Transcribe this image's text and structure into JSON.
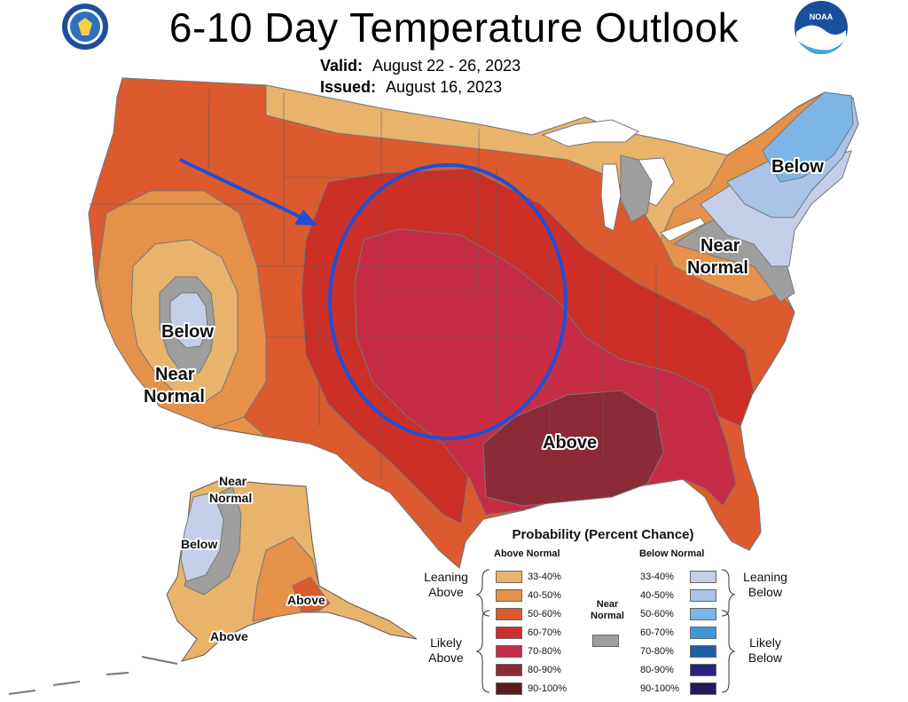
{
  "title": "6-10 Day Temperature Outlook",
  "valid": {
    "label": "Valid:",
    "value": "August 22 - 26, 2023"
  },
  "issued": {
    "label": "Issued:",
    "value": "August 16, 2023"
  },
  "logos": {
    "doc_seal": "Department of Commerce seal",
    "noaa": "NOAA"
  },
  "map_labels": {
    "northeast_below": "Below",
    "greatlakes_near_1": "Near",
    "greatlakes_near_2": "Normal",
    "west_below": "Below",
    "west_near_1": "Near",
    "west_near_2": "Normal",
    "gulf_above": "Above",
    "ak_near_1": "Near",
    "ak_near_2": "Normal",
    "ak_below": "Below",
    "ak_above_1": "Above",
    "ak_above_2": "Above"
  },
  "legend": {
    "title": "Probability (Percent Chance)",
    "above_header": "Above Normal",
    "below_header": "Below Normal",
    "near_header_1": "Near",
    "near_header_2": "Normal",
    "leaning_above_1": "Leaning",
    "leaning_above_2": "Above",
    "likely_above_1": "Likely",
    "likely_above_2": "Above",
    "leaning_below_1": "Leaning",
    "leaning_below_2": "Below",
    "likely_below_1": "Likely",
    "likely_below_2": "Below",
    "above": [
      {
        "label": "33-40%",
        "color": "#E8B36A"
      },
      {
        "label": "40-50%",
        "color": "#E5914A"
      },
      {
        "label": "50-60%",
        "color": "#DC5A2E"
      },
      {
        "label": "60-70%",
        "color": "#CC2F28"
      },
      {
        "label": "70-80%",
        "color": "#C62D45"
      },
      {
        "label": "80-90%",
        "color": "#8C2A38"
      },
      {
        "label": "90-100%",
        "color": "#5A1A1E"
      }
    ],
    "below": [
      {
        "label": "33-40%",
        "color": "#C5CEE8"
      },
      {
        "label": "40-50%",
        "color": "#A9C4E6"
      },
      {
        "label": "50-60%",
        "color": "#7DB5E6"
      },
      {
        "label": "60-70%",
        "color": "#3F97D6"
      },
      {
        "label": "70-80%",
        "color": "#1F5FA6"
      },
      {
        "label": "80-90%",
        "color": "#2B2280"
      },
      {
        "label": "90-100%",
        "color": "#231C5C"
      }
    ],
    "near_color": "#9E9E9E"
  },
  "colors": {
    "highlight_ring": "#1F4FD8",
    "arrow": "#1F4FD8",
    "state_lines": "#5a5a5a"
  }
}
